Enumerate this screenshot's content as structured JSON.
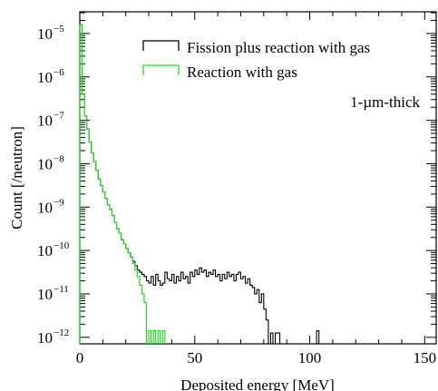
{
  "chart_data": {
    "type": "line",
    "title": "",
    "xlabel": "Deposited energy [MeV]",
    "ylabel": "Count [/neutron]",
    "xlim": [
      0,
      155
    ],
    "ylim_log10": [
      -12.15,
      -4.5
    ],
    "y_scale": "log",
    "x_ticks": [
      0,
      50,
      100,
      150
    ],
    "x_tick_labels": [
      "0",
      "50",
      "100",
      "150"
    ],
    "y_tick_exponents": [
      -12,
      -11,
      -10,
      -9,
      -8,
      -7,
      -6,
      -5
    ],
    "y_tick_labels": [
      "10",
      "10",
      "10",
      "10",
      "10",
      "10",
      "10",
      "10"
    ],
    "y_tick_sups": [
      "−12",
      "−11",
      "−10",
      "−9",
      "−8",
      "−7",
      "−6",
      "−5"
    ],
    "annotation": "1-µm-thick",
    "legend_position": "top-right",
    "bin_width_mev": 1,
    "series": [
      {
        "name": "Fission plus reaction with gas",
        "color": "#000000",
        "steps": [
          [
            0,
            -4.8
          ],
          [
            1,
            -6.4
          ],
          [
            2,
            -6.9
          ],
          [
            3,
            -7.2
          ],
          [
            4,
            -7.5
          ],
          [
            5,
            -7.75
          ],
          [
            6,
            -7.95
          ],
          [
            7,
            -8.15
          ],
          [
            8,
            -8.35
          ],
          [
            9,
            -8.5
          ],
          [
            10,
            -8.65
          ],
          [
            11,
            -8.8
          ],
          [
            12,
            -8.95
          ],
          [
            13,
            -9.05
          ],
          [
            14,
            -9.2
          ],
          [
            15,
            -9.35
          ],
          [
            16,
            -9.5
          ],
          [
            17,
            -9.6
          ],
          [
            18,
            -9.75
          ],
          [
            19,
            -9.85
          ],
          [
            20,
            -9.95
          ],
          [
            21,
            -10.05
          ],
          [
            22,
            -10.15
          ],
          [
            23,
            -10.25
          ],
          [
            24,
            -10.35
          ],
          [
            25,
            -10.45
          ],
          [
            26,
            -10.5
          ],
          [
            27,
            -10.55
          ],
          [
            28,
            -10.6
          ],
          [
            29,
            -10.7
          ],
          [
            30,
            -10.75
          ],
          [
            31,
            -10.6
          ],
          [
            32,
            -10.8
          ],
          [
            33,
            -10.55
          ],
          [
            34,
            -10.7
          ],
          [
            35,
            -10.8
          ],
          [
            36,
            -10.75
          ],
          [
            37,
            -10.5
          ],
          [
            38,
            -10.65
          ],
          [
            39,
            -10.7
          ],
          [
            40,
            -10.55
          ],
          [
            41,
            -10.75
          ],
          [
            42,
            -10.6
          ],
          [
            43,
            -10.7
          ],
          [
            44,
            -10.5
          ],
          [
            45,
            -10.65
          ],
          [
            46,
            -10.6
          ],
          [
            47,
            -10.75
          ],
          [
            48,
            -10.5
          ],
          [
            49,
            -10.6
          ],
          [
            50,
            -10.45
          ],
          [
            51,
            -10.55
          ],
          [
            52,
            -10.4
          ],
          [
            53,
            -10.5
          ],
          [
            54,
            -10.45
          ],
          [
            55,
            -10.6
          ],
          [
            56,
            -10.5
          ],
          [
            57,
            -10.55
          ],
          [
            58,
            -10.45
          ],
          [
            59,
            -10.6
          ],
          [
            60,
            -10.55
          ],
          [
            61,
            -10.7
          ],
          [
            62,
            -10.55
          ],
          [
            63,
            -10.65
          ],
          [
            64,
            -10.5
          ],
          [
            65,
            -10.6
          ],
          [
            66,
            -10.55
          ],
          [
            67,
            -10.7
          ],
          [
            68,
            -10.55
          ],
          [
            69,
            -10.5
          ],
          [
            70,
            -10.65
          ],
          [
            71,
            -10.6
          ],
          [
            72,
            -10.75
          ],
          [
            73,
            -10.65
          ],
          [
            74,
            -10.8
          ],
          [
            75,
            -10.85
          ],
          [
            76,
            -11.0
          ],
          [
            77,
            -10.9
          ],
          [
            78,
            -11.2
          ],
          [
            79,
            -11.0
          ],
          [
            80,
            -11.35
          ],
          [
            81,
            -11.6
          ],
          [
            82,
            null
          ],
          [
            83,
            -11.9
          ],
          [
            84,
            null
          ],
          [
            85,
            -11.9
          ],
          [
            86,
            -11.9
          ],
          [
            87,
            null
          ],
          [
            103,
            -11.85
          ],
          [
            104,
            null
          ]
        ]
      },
      {
        "name": "Reaction with gas",
        "color": "#22dd22",
        "steps": [
          [
            0,
            -4.8
          ],
          [
            1,
            -6.4
          ],
          [
            2,
            -6.9
          ],
          [
            3,
            -7.2
          ],
          [
            4,
            -7.5
          ],
          [
            5,
            -7.75
          ],
          [
            6,
            -7.95
          ],
          [
            7,
            -8.15
          ],
          [
            8,
            -8.35
          ],
          [
            9,
            -8.5
          ],
          [
            10,
            -8.65
          ],
          [
            11,
            -8.8
          ],
          [
            12,
            -8.95
          ],
          [
            13,
            -9.05
          ],
          [
            14,
            -9.2
          ],
          [
            15,
            -9.35
          ],
          [
            16,
            -9.5
          ],
          [
            17,
            -9.6
          ],
          [
            18,
            -9.75
          ],
          [
            19,
            -9.85
          ],
          [
            20,
            -9.95
          ],
          [
            21,
            -10.05
          ],
          [
            22,
            -10.15
          ],
          [
            23,
            -10.3
          ],
          [
            24,
            -10.45
          ],
          [
            25,
            -10.6
          ],
          [
            26,
            -10.8
          ],
          [
            27,
            -11.0
          ],
          [
            28,
            -11.2
          ],
          [
            29,
            null
          ],
          [
            30,
            -11.85
          ],
          [
            31,
            null
          ],
          [
            32,
            -11.85
          ],
          [
            33,
            null
          ],
          [
            34,
            -11.85
          ],
          [
            35,
            null
          ],
          [
            36,
            -11.85
          ],
          [
            37,
            null
          ]
        ]
      }
    ]
  }
}
